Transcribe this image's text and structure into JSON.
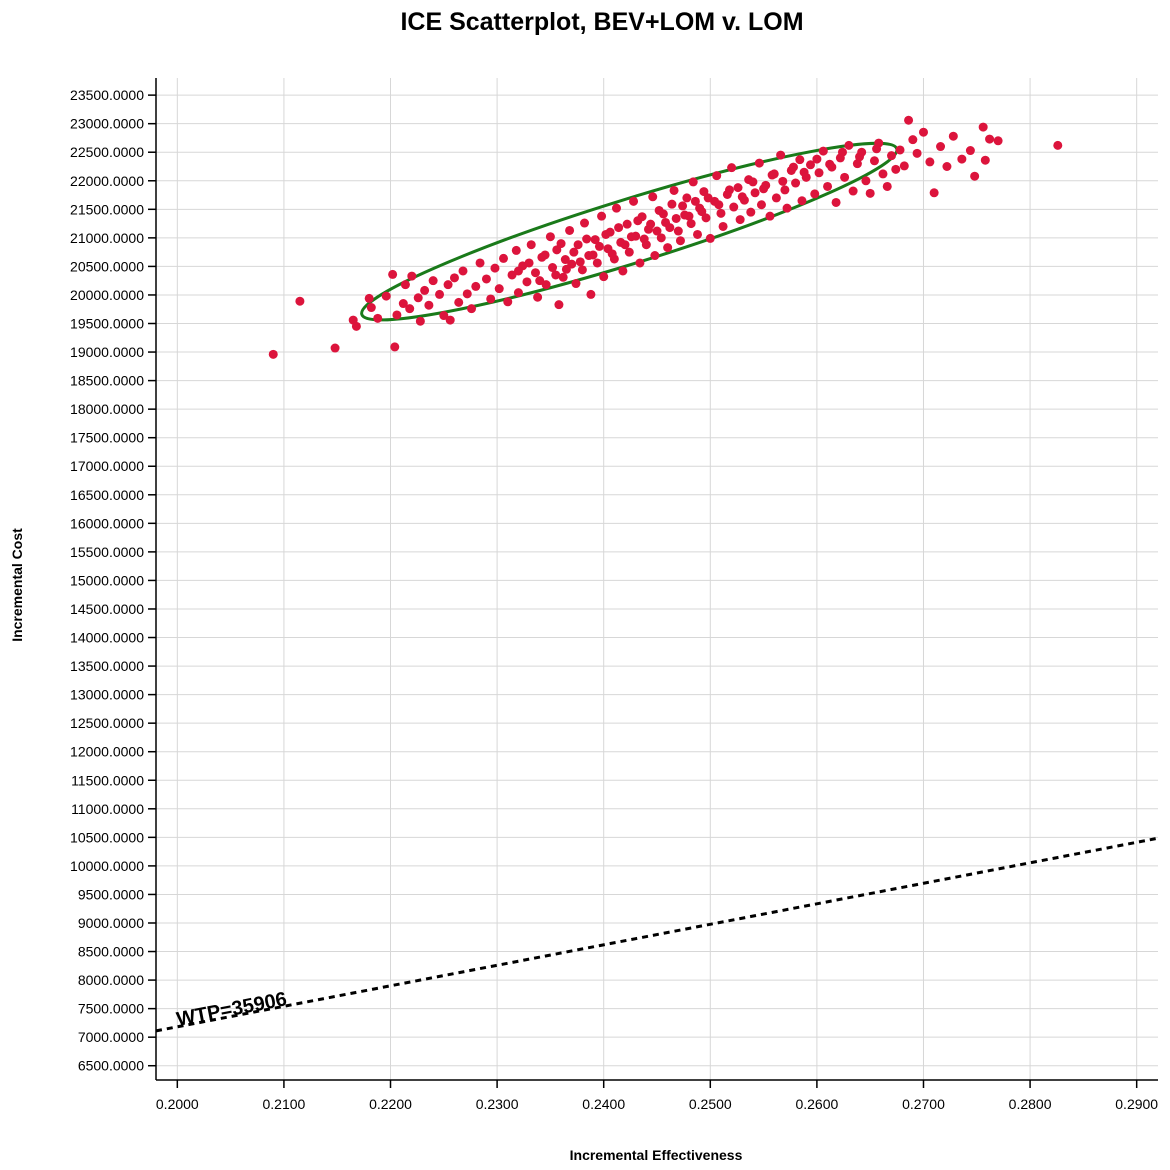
{
  "chart_data": {
    "type": "scatter",
    "title": "ICE Scatterplot, BEV+LOM v. LOM",
    "xlabel": "Incremental Effectiveness",
    "ylabel": "Incremental Cost",
    "xlim": [
      0.198,
      0.292
    ],
    "ylim": [
      6250,
      23800
    ],
    "x_ticks": [
      "0.2000",
      "0.2100",
      "0.2200",
      "0.2300",
      "0.2400",
      "0.2500",
      "0.2600",
      "0.2700",
      "0.2800",
      "0.2900"
    ],
    "y_ticks": [
      "6500.0000",
      "7000.0000",
      "7500.0000",
      "8000.0000",
      "8500.0000",
      "9000.0000",
      "9500.0000",
      "10000.0000",
      "10500.0000",
      "11000.0000",
      "11500.0000",
      "12000.0000",
      "12500.0000",
      "13000.0000",
      "13500.0000",
      "14000.0000",
      "14500.0000",
      "15000.0000",
      "15500.0000",
      "16000.0000",
      "16500.0000",
      "17000.0000",
      "17500.0000",
      "18000.0000",
      "18500.0000",
      "19000.0000",
      "19500.0000",
      "20000.0000",
      "20500.0000",
      "21000.0000",
      "21500.0000",
      "22000.0000",
      "22500.0000",
      "23000.0000",
      "23500.0000"
    ],
    "grid": true,
    "point_color": "#dc143c",
    "ellipse_color": "#1a7a1a",
    "wtp_line_color": "#000000",
    "points": [
      [
        0.209,
        18960
      ],
      [
        0.2115,
        19890
      ],
      [
        0.2148,
        19070
      ],
      [
        0.2204,
        19090
      ],
      [
        0.2165,
        19560
      ],
      [
        0.2168,
        19450
      ],
      [
        0.218,
        19940
      ],
      [
        0.2182,
        19780
      ],
      [
        0.2188,
        19590
      ],
      [
        0.2196,
        19980
      ],
      [
        0.2202,
        20360
      ],
      [
        0.2206,
        19650
      ],
      [
        0.2212,
        19850
      ],
      [
        0.2214,
        20180
      ],
      [
        0.2218,
        19760
      ],
      [
        0.222,
        20330
      ],
      [
        0.2226,
        19950
      ],
      [
        0.2228,
        19540
      ],
      [
        0.2232,
        20080
      ],
      [
        0.2236,
        19820
      ],
      [
        0.224,
        20250
      ],
      [
        0.2246,
        20010
      ],
      [
        0.225,
        19640
      ],
      [
        0.2254,
        20180
      ],
      [
        0.2256,
        19560
      ],
      [
        0.226,
        20300
      ],
      [
        0.2264,
        19870
      ],
      [
        0.2268,
        20420
      ],
      [
        0.2272,
        20020
      ],
      [
        0.2276,
        19760
      ],
      [
        0.228,
        20150
      ],
      [
        0.2284,
        20560
      ],
      [
        0.229,
        20280
      ],
      [
        0.2294,
        19930
      ],
      [
        0.2298,
        20470
      ],
      [
        0.2302,
        20110
      ],
      [
        0.2306,
        20640
      ],
      [
        0.231,
        19880
      ],
      [
        0.2314,
        20350
      ],
      [
        0.2318,
        20780
      ],
      [
        0.232,
        20040
      ],
      [
        0.2324,
        20510
      ],
      [
        0.2328,
        20230
      ],
      [
        0.2332,
        20880
      ],
      [
        0.2336,
        20390
      ],
      [
        0.2338,
        19960
      ],
      [
        0.2342,
        20660
      ],
      [
        0.2346,
        20180
      ],
      [
        0.235,
        21020
      ],
      [
        0.2352,
        20480
      ],
      [
        0.2356,
        20790
      ],
      [
        0.2358,
        19830
      ],
      [
        0.2362,
        20310
      ],
      [
        0.2364,
        20620
      ],
      [
        0.2368,
        21130
      ],
      [
        0.237,
        20540
      ],
      [
        0.2374,
        20200
      ],
      [
        0.2376,
        20880
      ],
      [
        0.238,
        20440
      ],
      [
        0.2382,
        21260
      ],
      [
        0.2386,
        20690
      ],
      [
        0.2388,
        20010
      ],
      [
        0.2392,
        20970
      ],
      [
        0.2394,
        20560
      ],
      [
        0.2398,
        21380
      ],
      [
        0.24,
        20320
      ],
      [
        0.2404,
        20810
      ],
      [
        0.2406,
        21100
      ],
      [
        0.241,
        20630
      ],
      [
        0.2412,
        21520
      ],
      [
        0.2416,
        20920
      ],
      [
        0.2418,
        20420
      ],
      [
        0.2422,
        21240
      ],
      [
        0.2424,
        20750
      ],
      [
        0.2428,
        21640
      ],
      [
        0.243,
        21030
      ],
      [
        0.2434,
        20560
      ],
      [
        0.2436,
        21370
      ],
      [
        0.244,
        20880
      ],
      [
        0.2442,
        21150
      ],
      [
        0.2446,
        21720
      ],
      [
        0.2448,
        20690
      ],
      [
        0.2452,
        21480
      ],
      [
        0.2454,
        21000
      ],
      [
        0.2458,
        21270
      ],
      [
        0.246,
        20830
      ],
      [
        0.2464,
        21590
      ],
      [
        0.2466,
        21830
      ],
      [
        0.247,
        21120
      ],
      [
        0.2472,
        20950
      ],
      [
        0.2476,
        21400
      ],
      [
        0.2478,
        21700
      ],
      [
        0.2482,
        21250
      ],
      [
        0.2484,
        21980
      ],
      [
        0.2488,
        21060
      ],
      [
        0.249,
        21520
      ],
      [
        0.2494,
        21810
      ],
      [
        0.2496,
        21350
      ],
      [
        0.25,
        20990
      ],
      [
        0.2504,
        21640
      ],
      [
        0.2506,
        22090
      ],
      [
        0.251,
        21430
      ],
      [
        0.2512,
        21200
      ],
      [
        0.2516,
        21760
      ],
      [
        0.252,
        22230
      ],
      [
        0.2522,
        21540
      ],
      [
        0.2526,
        21880
      ],
      [
        0.2528,
        21320
      ],
      [
        0.2532,
        21660
      ],
      [
        0.2536,
        22020
      ],
      [
        0.2538,
        21450
      ],
      [
        0.2542,
        21790
      ],
      [
        0.2546,
        22310
      ],
      [
        0.2548,
        21580
      ],
      [
        0.2552,
        21920
      ],
      [
        0.2556,
        21380
      ],
      [
        0.256,
        22120
      ],
      [
        0.2562,
        21700
      ],
      [
        0.2566,
        22450
      ],
      [
        0.257,
        21840
      ],
      [
        0.2572,
        21520
      ],
      [
        0.2576,
        22180
      ],
      [
        0.258,
        21960
      ],
      [
        0.2584,
        22370
      ],
      [
        0.2586,
        21650
      ],
      [
        0.259,
        22060
      ],
      [
        0.2594,
        22280
      ],
      [
        0.2598,
        21770
      ],
      [
        0.2602,
        22140
      ],
      [
        0.2606,
        22520
      ],
      [
        0.261,
        21900
      ],
      [
        0.2614,
        22240
      ],
      [
        0.2618,
        21620
      ],
      [
        0.2622,
        22400
      ],
      [
        0.2626,
        22060
      ],
      [
        0.263,
        22620
      ],
      [
        0.2634,
        21820
      ],
      [
        0.2638,
        22300
      ],
      [
        0.2642,
        22500
      ],
      [
        0.2646,
        22000
      ],
      [
        0.265,
        21780
      ],
      [
        0.2654,
        22350
      ],
      [
        0.2658,
        22660
      ],
      [
        0.2662,
        22120
      ],
      [
        0.2666,
        21900
      ],
      [
        0.267,
        22440
      ],
      [
        0.2674,
        22200
      ],
      [
        0.2678,
        22540
      ],
      [
        0.2682,
        22260
      ],
      [
        0.2686,
        23060
      ],
      [
        0.269,
        22720
      ],
      [
        0.2694,
        22480
      ],
      [
        0.27,
        22850
      ],
      [
        0.2706,
        22330
      ],
      [
        0.271,
        21790
      ],
      [
        0.2716,
        22600
      ],
      [
        0.2722,
        22250
      ],
      [
        0.2728,
        22780
      ],
      [
        0.2736,
        22380
      ],
      [
        0.2744,
        22530
      ],
      [
        0.2748,
        22080
      ],
      [
        0.2756,
        22940
      ],
      [
        0.2758,
        22360
      ],
      [
        0.2762,
        22730
      ],
      [
        0.277,
        22700
      ],
      [
        0.2826,
        22620
      ],
      [
        0.232,
        20420
      ],
      [
        0.233,
        20560
      ],
      [
        0.234,
        20250
      ],
      [
        0.2345,
        20700
      ],
      [
        0.2355,
        20350
      ],
      [
        0.236,
        20900
      ],
      [
        0.2365,
        20450
      ],
      [
        0.2372,
        20750
      ],
      [
        0.2378,
        20580
      ],
      [
        0.2384,
        20980
      ],
      [
        0.239,
        20700
      ],
      [
        0.2396,
        20850
      ],
      [
        0.2402,
        21060
      ],
      [
        0.2408,
        20720
      ],
      [
        0.2414,
        21180
      ],
      [
        0.242,
        20880
      ],
      [
        0.2426,
        21020
      ],
      [
        0.2432,
        21300
      ],
      [
        0.2438,
        20980
      ],
      [
        0.2444,
        21240
      ],
      [
        0.245,
        21120
      ],
      [
        0.2456,
        21420
      ],
      [
        0.2462,
        21180
      ],
      [
        0.2468,
        21340
      ],
      [
        0.2474,
        21560
      ],
      [
        0.248,
        21380
      ],
      [
        0.2486,
        21640
      ],
      [
        0.2492,
        21460
      ],
      [
        0.2498,
        21700
      ],
      [
        0.2508,
        21580
      ],
      [
        0.2518,
        21840
      ],
      [
        0.253,
        21720
      ],
      [
        0.254,
        21980
      ],
      [
        0.255,
        21860
      ],
      [
        0.2558,
        22100
      ],
      [
        0.2568,
        21990
      ],
      [
        0.2578,
        22240
      ],
      [
        0.2588,
        22150
      ],
      [
        0.26,
        22380
      ],
      [
        0.2612,
        22290
      ],
      [
        0.2624,
        22500
      ],
      [
        0.264,
        22420
      ],
      [
        0.2656,
        22560
      ]
    ],
    "ellipse": {
      "center": [
        0.2424,
        21110
      ],
      "semi_major": 280,
      "semi_minor": 32,
      "rotation_deg": -17.2
    },
    "wtp_line": {
      "label": "WTP=35906",
      "slope": 35906,
      "start": [
        0.198,
        7110
      ],
      "end": [
        0.292,
        10485
      ]
    }
  }
}
